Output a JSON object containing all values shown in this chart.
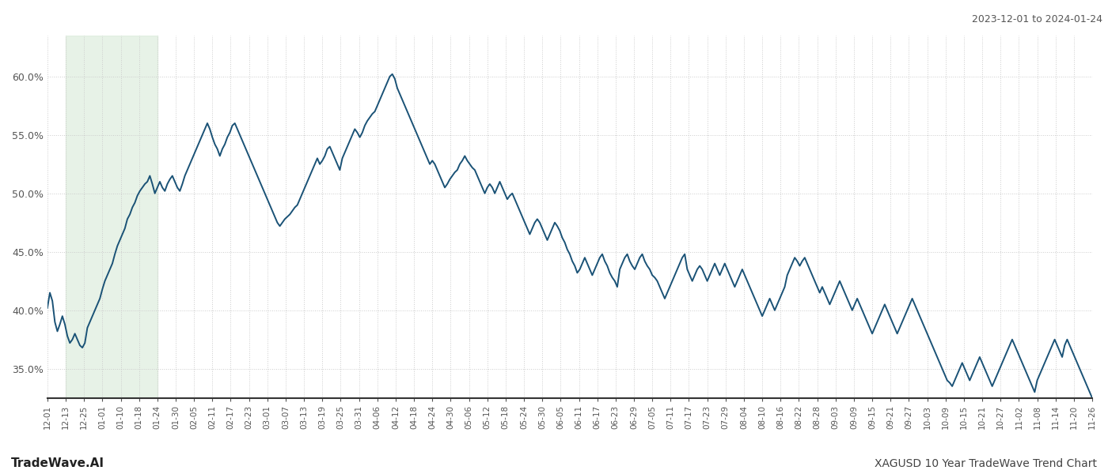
{
  "title_date_range": "2023-12-01 to 2024-01-24",
  "footer_left": "TradeWave.AI",
  "footer_right": "XAGUSD 10 Year TradeWave Trend Chart",
  "line_color": "#1a5276",
  "line_width": 1.4,
  "shade_color": "#d5e8d4",
  "shade_alpha": 0.55,
  "background_color": "#ffffff",
  "grid_color": "#cccccc",
  "grid_style": ":",
  "ylim": [
    32.5,
    63.5
  ],
  "yticks": [
    35.0,
    40.0,
    45.0,
    50.0,
    55.0,
    60.0
  ],
  "x_labels": [
    "12-01",
    "12-13",
    "12-25",
    "01-01",
    "01-10",
    "01-18",
    "01-24",
    "01-30",
    "02-05",
    "02-11",
    "02-17",
    "02-23",
    "03-01",
    "03-07",
    "03-13",
    "03-19",
    "03-25",
    "03-31",
    "04-06",
    "04-12",
    "04-18",
    "04-24",
    "04-30",
    "05-06",
    "05-12",
    "05-18",
    "05-24",
    "05-30",
    "06-05",
    "06-11",
    "06-17",
    "06-23",
    "06-29",
    "07-05",
    "07-11",
    "07-17",
    "07-23",
    "07-29",
    "08-04",
    "08-10",
    "08-16",
    "08-22",
    "08-28",
    "09-03",
    "09-09",
    "09-15",
    "09-21",
    "09-27",
    "10-03",
    "10-09",
    "10-15",
    "10-21",
    "10-27",
    "11-02",
    "11-08",
    "11-14",
    "11-20",
    "11-26"
  ],
  "shade_x_start_label": "12-13",
  "shade_x_end_label": "01-24",
  "y_data": [
    40.2,
    41.5,
    40.8,
    39.0,
    38.2,
    38.8,
    39.5,
    38.8,
    37.8,
    37.2,
    37.5,
    38.0,
    37.5,
    37.0,
    36.8,
    37.2,
    38.5,
    39.0,
    39.5,
    40.0,
    40.5,
    41.0,
    41.8,
    42.5,
    43.0,
    43.5,
    44.0,
    44.8,
    45.5,
    46.0,
    46.5,
    47.0,
    47.8,
    48.2,
    48.8,
    49.2,
    49.8,
    50.2,
    50.5,
    50.8,
    51.0,
    51.5,
    50.8,
    50.0,
    50.5,
    51.0,
    50.5,
    50.2,
    50.8,
    51.2,
    51.5,
    51.0,
    50.5,
    50.2,
    50.8,
    51.5,
    52.0,
    52.5,
    53.0,
    53.5,
    54.0,
    54.5,
    55.0,
    55.5,
    56.0,
    55.5,
    54.8,
    54.2,
    53.8,
    53.2,
    53.8,
    54.2,
    54.8,
    55.2,
    55.8,
    56.0,
    55.5,
    55.0,
    54.5,
    54.0,
    53.5,
    53.0,
    52.5,
    52.0,
    51.5,
    51.0,
    50.5,
    50.0,
    49.5,
    49.0,
    48.5,
    48.0,
    47.5,
    47.2,
    47.5,
    47.8,
    48.0,
    48.2,
    48.5,
    48.8,
    49.0,
    49.5,
    50.0,
    50.5,
    51.0,
    51.5,
    52.0,
    52.5,
    53.0,
    52.5,
    52.8,
    53.2,
    53.8,
    54.0,
    53.5,
    53.0,
    52.5,
    52.0,
    53.0,
    53.5,
    54.0,
    54.5,
    55.0,
    55.5,
    55.2,
    54.8,
    55.2,
    55.8,
    56.2,
    56.5,
    56.8,
    57.0,
    57.5,
    58.0,
    58.5,
    59.0,
    59.5,
    60.0,
    60.2,
    59.8,
    59.0,
    58.5,
    58.0,
    57.5,
    57.0,
    56.5,
    56.0,
    55.5,
    55.0,
    54.5,
    54.0,
    53.5,
    53.0,
    52.5,
    52.8,
    52.5,
    52.0,
    51.5,
    51.0,
    50.5,
    50.8,
    51.2,
    51.5,
    51.8,
    52.0,
    52.5,
    52.8,
    53.2,
    52.8,
    52.5,
    52.2,
    52.0,
    51.5,
    51.0,
    50.5,
    50.0,
    50.5,
    50.8,
    50.5,
    50.0,
    50.5,
    51.0,
    50.5,
    50.0,
    49.5,
    49.8,
    50.0,
    49.5,
    49.0,
    48.5,
    48.0,
    47.5,
    47.0,
    46.5,
    47.0,
    47.5,
    47.8,
    47.5,
    47.0,
    46.5,
    46.0,
    46.5,
    47.0,
    47.5,
    47.2,
    46.8,
    46.2,
    45.8,
    45.2,
    44.8,
    44.2,
    43.8,
    43.2,
    43.5,
    44.0,
    44.5,
    44.0,
    43.5,
    43.0,
    43.5,
    44.0,
    44.5,
    44.8,
    44.2,
    43.8,
    43.2,
    42.8,
    42.5,
    42.0,
    43.5,
    44.0,
    44.5,
    44.8,
    44.2,
    43.8,
    43.5,
    44.0,
    44.5,
    44.8,
    44.2,
    43.8,
    43.5,
    43.0,
    42.8,
    42.5,
    42.0,
    41.5,
    41.0,
    41.5,
    42.0,
    42.5,
    43.0,
    43.5,
    44.0,
    44.5,
    44.8,
    43.5,
    43.0,
    42.5,
    43.0,
    43.5,
    43.8,
    43.5,
    43.0,
    42.5,
    43.0,
    43.5,
    44.0,
    43.5,
    43.0,
    43.5,
    44.0,
    43.5,
    43.0,
    42.5,
    42.0,
    42.5,
    43.0,
    43.5,
    43.0,
    42.5,
    42.0,
    41.5,
    41.0,
    40.5,
    40.0,
    39.5,
    40.0,
    40.5,
    41.0,
    40.5,
    40.0,
    40.5,
    41.0,
    41.5,
    42.0,
    43.0,
    43.5,
    44.0,
    44.5,
    44.2,
    43.8,
    44.2,
    44.5,
    44.0,
    43.5,
    43.0,
    42.5,
    42.0,
    41.5,
    42.0,
    41.5,
    41.0,
    40.5,
    41.0,
    41.5,
    42.0,
    42.5,
    42.0,
    41.5,
    41.0,
    40.5,
    40.0,
    40.5,
    41.0,
    40.5,
    40.0,
    39.5,
    39.0,
    38.5,
    38.0,
    38.5,
    39.0,
    39.5,
    40.0,
    40.5,
    40.0,
    39.5,
    39.0,
    38.5,
    38.0,
    38.5,
    39.0,
    39.5,
    40.0,
    40.5,
    41.0,
    40.5,
    40.0,
    39.5,
    39.0,
    38.5,
    38.0,
    37.5,
    37.0,
    36.5,
    36.0,
    35.5,
    35.0,
    34.5,
    34.0,
    33.8,
    33.5,
    34.0,
    34.5,
    35.0,
    35.5,
    35.0,
    34.5,
    34.0,
    34.5,
    35.0,
    35.5,
    36.0,
    35.5,
    35.0,
    34.5,
    34.0,
    33.5,
    34.0,
    34.5,
    35.0,
    35.5,
    36.0,
    36.5,
    37.0,
    37.5,
    37.0,
    36.5,
    36.0,
    35.5,
    35.0,
    34.5,
    34.0,
    33.5,
    33.0,
    34.0,
    34.5,
    35.0,
    35.5,
    36.0,
    36.5,
    37.0,
    37.5,
    37.0,
    36.5,
    36.0,
    37.0,
    37.5,
    37.0,
    36.5,
    36.0,
    35.5,
    35.0,
    34.5,
    34.0,
    33.5,
    33.0,
    32.5
  ]
}
